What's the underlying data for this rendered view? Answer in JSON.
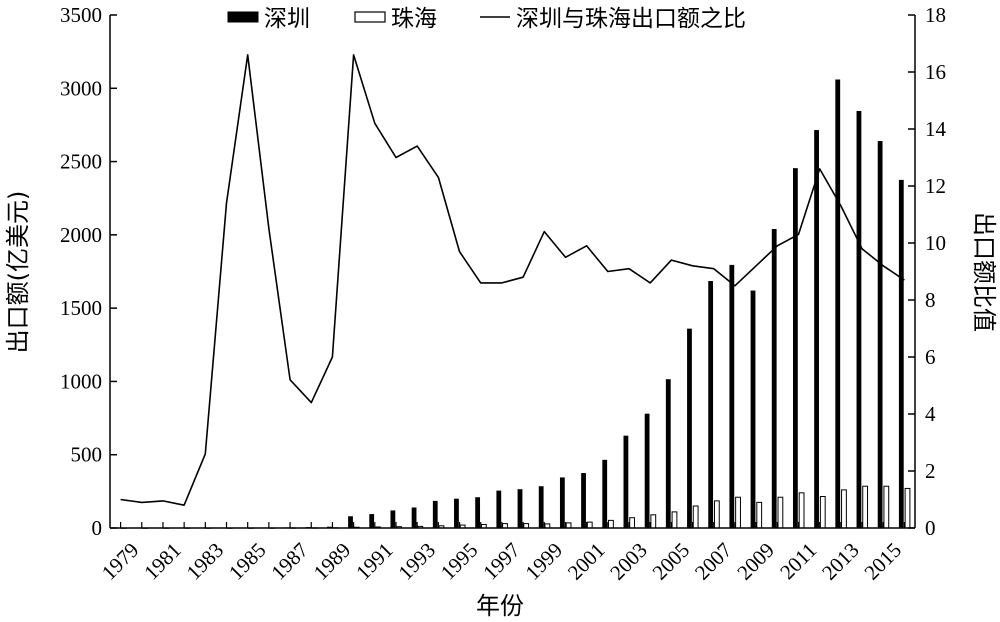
{
  "chart_data": {
    "type": "bar",
    "title": "",
    "xlabel": "年份",
    "ylabel_left": "出口额(亿美元)",
    "ylabel_right": "出口额比值",
    "ylim_left": [
      0,
      3500
    ],
    "ylim_right": [
      0,
      18
    ],
    "yticks_left": [
      0,
      500,
      1000,
      1500,
      2000,
      2500,
      3000,
      3500
    ],
    "yticks_right": [
      0,
      2,
      4,
      6,
      8,
      10,
      12,
      14,
      16,
      18
    ],
    "x": [
      "1979",
      "1980",
      "1981",
      "1982",
      "1983",
      "1984",
      "1985",
      "1986",
      "1987",
      "1988",
      "1989",
      "1990",
      "1991",
      "1992",
      "1993",
      "1994",
      "1995",
      "1996",
      "1997",
      "1998",
      "1999",
      "2000",
      "2001",
      "2002",
      "2003",
      "2004",
      "2005",
      "2006",
      "2007",
      "2008",
      "2009",
      "2010",
      "2011",
      "2012",
      "2013",
      "2014",
      "2015",
      "2016"
    ],
    "x_tick_labels": [
      "1979",
      "1981",
      "1983",
      "1985",
      "1987",
      "1989",
      "1991",
      "1993",
      "1995",
      "1997",
      "1999",
      "2001",
      "2003",
      "2005",
      "2007",
      "2009",
      "2011",
      "2013",
      "2015"
    ],
    "legend_position": "top",
    "series": [
      {
        "name": "深圳",
        "type": "bar",
        "axis": "left",
        "color": "#000000",
        "values": [
          0.1,
          0.2,
          0.2,
          0.3,
          0.5,
          2.5,
          3,
          3.5,
          4,
          6,
          9,
          80,
          95,
          120,
          140,
          185,
          200,
          210,
          255,
          265,
          285,
          345,
          375,
          465,
          630,
          780,
          1015,
          1360,
          1685,
          1795,
          1620,
          2040,
          2455,
          2715,
          3060,
          2845,
          2640,
          2375
        ]
      },
      {
        "name": "珠海",
        "type": "bar",
        "axis": "left",
        "color": "#ffffff",
        "values": [
          0.1,
          0.2,
          0.2,
          0.4,
          0.2,
          0.2,
          0.2,
          0.4,
          0.8,
          1,
          1.5,
          5,
          7,
          9,
          11,
          15,
          20,
          24,
          30,
          30,
          28,
          35,
          40,
          52,
          70,
          90,
          110,
          150,
          185,
          210,
          175,
          210,
          240,
          215,
          260,
          285,
          285,
          270
        ]
      },
      {
        "name": "深圳与珠海出口额之比",
        "type": "line",
        "axis": "right",
        "color": "#000000",
        "values": [
          1.0,
          0.9,
          0.95,
          0.8,
          2.6,
          11.4,
          16.6,
          10.5,
          5.2,
          4.4,
          6.0,
          16.6,
          14.2,
          13.0,
          13.4,
          12.3,
          9.7,
          8.6,
          8.6,
          8.8,
          10.4,
          9.5,
          9.9,
          9.0,
          9.1,
          8.6,
          9.4,
          9.2,
          9.1,
          8.5,
          9.2,
          9.9,
          10.3,
          12.6,
          11.3,
          9.8,
          9.2,
          8.7
        ]
      }
    ]
  }
}
